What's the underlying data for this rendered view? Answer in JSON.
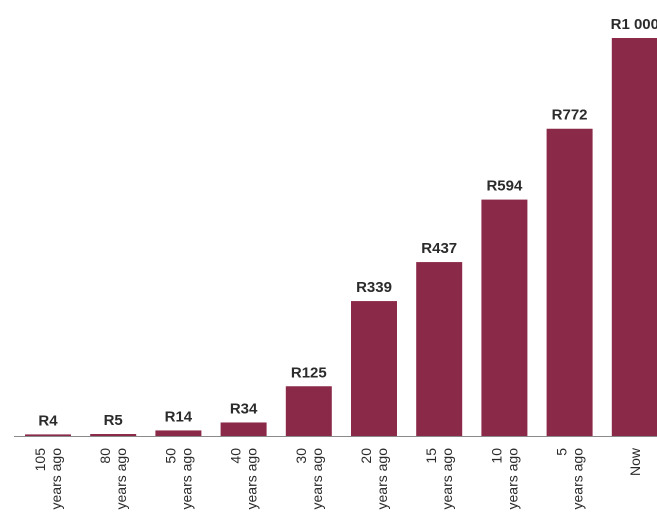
{
  "chart_data": {
    "type": "bar",
    "categories": [
      [
        "105",
        "years ago"
      ],
      [
        "80",
        "years ago"
      ],
      [
        "50",
        "years ago"
      ],
      [
        "40",
        "years ago"
      ],
      [
        "30",
        "years ago"
      ],
      [
        "20",
        "years ago"
      ],
      [
        "15",
        "years ago"
      ],
      [
        "10",
        "years ago"
      ],
      [
        "5",
        "years ago"
      ],
      [
        "Now"
      ]
    ],
    "values": [
      4,
      5,
      14,
      34,
      125,
      339,
      437,
      594,
      772,
      1000
    ],
    "value_labels": [
      "R4",
      "R5",
      "R14",
      "R34",
      "R125",
      "R339",
      "R437",
      "R594",
      "R772",
      "R1 000"
    ],
    "ylim": [
      0,
      1000
    ],
    "grid": false,
    "legend": "none",
    "bar_color": "#8b2a48",
    "title": "",
    "xlabel": "",
    "ylabel": ""
  }
}
